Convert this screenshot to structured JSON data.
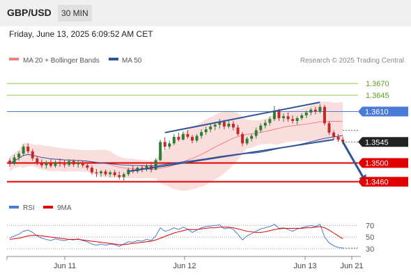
{
  "header": {
    "symbol": "GBP/USD",
    "timeframe": "30 MIN"
  },
  "datetime": "Friday, June 13, 2025 6:09:52 AM CET",
  "legend": [
    {
      "label": "MA 20 + Bollinger Bands",
      "color": "#f08080"
    },
    {
      "label": "MA 50",
      "color": "#2f5597"
    }
  ],
  "credit": "Research © 2025 Trading Central",
  "colors": {
    "up": "#2e7d32",
    "down": "#c62828",
    "resistance": "#8bc34a",
    "pivot": "#4a7bd6",
    "support": "#e00000",
    "current": "#222222",
    "arrow": "#2f5597"
  },
  "chart_data": {
    "type": "candlestick",
    "ylim": [
      1.3425,
      1.37
    ],
    "x_ticks": [
      "Jun 11",
      "Jun 12",
      "Jun 13",
      "Jun 21"
    ],
    "levels": [
      {
        "value": 1.367,
        "label": "1.3670",
        "kind": "resistance"
      },
      {
        "value": 1.3645,
        "label": "1.3645",
        "kind": "resistance"
      },
      {
        "value": 1.361,
        "label": "1.3610",
        "kind": "pivot"
      },
      {
        "value": 1.3545,
        "label": "1.3545",
        "kind": "current"
      },
      {
        "value": 1.35,
        "label": "1.3500",
        "kind": "support"
      },
      {
        "value": 1.346,
        "label": "1.3460",
        "kind": "support"
      }
    ],
    "candles": [
      [
        1.3505,
        1.351,
        1.3492,
        1.3498
      ],
      [
        1.3498,
        1.3518,
        1.3495,
        1.3512
      ],
      [
        1.3512,
        1.3525,
        1.3505,
        1.352
      ],
      [
        1.352,
        1.354,
        1.3515,
        1.3535
      ],
      [
        1.3535,
        1.3542,
        1.352,
        1.3525
      ],
      [
        1.3525,
        1.353,
        1.3505,
        1.351
      ],
      [
        1.351,
        1.3515,
        1.3495,
        1.35
      ],
      [
        1.35,
        1.3508,
        1.349,
        1.3495
      ],
      [
        1.3495,
        1.3505,
        1.3488,
        1.35
      ],
      [
        1.35,
        1.3508,
        1.349,
        1.3494
      ],
      [
        1.3494,
        1.3506,
        1.349,
        1.3502
      ],
      [
        1.3502,
        1.351,
        1.3492,
        1.3498
      ],
      [
        1.3498,
        1.3506,
        1.349,
        1.3496
      ],
      [
        1.3496,
        1.3508,
        1.3492,
        1.3504
      ],
      [
        1.3504,
        1.3508,
        1.3492,
        1.3497
      ],
      [
        1.3497,
        1.3506,
        1.349,
        1.35
      ],
      [
        1.35,
        1.3505,
        1.349,
        1.3495
      ],
      [
        1.3495,
        1.3502,
        1.3485,
        1.349
      ],
      [
        1.349,
        1.3495,
        1.3475,
        1.348
      ],
      [
        1.348,
        1.3487,
        1.347,
        1.3478
      ],
      [
        1.3478,
        1.3485,
        1.347,
        1.3482
      ],
      [
        1.3482,
        1.3486,
        1.3472,
        1.3476
      ],
      [
        1.3476,
        1.3484,
        1.347,
        1.348
      ],
      [
        1.348,
        1.3485,
        1.347,
        1.3474
      ],
      [
        1.3474,
        1.3482,
        1.3465,
        1.347
      ],
      [
        1.347,
        1.348,
        1.3462,
        1.3476
      ],
      [
        1.3476,
        1.349,
        1.3472,
        1.3486
      ],
      [
        1.3486,
        1.3495,
        1.3478,
        1.3482
      ],
      [
        1.3482,
        1.3492,
        1.3478,
        1.349
      ],
      [
        1.349,
        1.3496,
        1.348,
        1.3486
      ],
      [
        1.3486,
        1.3498,
        1.3482,
        1.3494
      ],
      [
        1.3494,
        1.3502,
        1.348,
        1.3486
      ],
      [
        1.3486,
        1.351,
        1.3484,
        1.3506
      ],
      [
        1.3506,
        1.355,
        1.3504,
        1.3545
      ],
      [
        1.3545,
        1.3555,
        1.3528,
        1.3535
      ],
      [
        1.3535,
        1.3548,
        1.353,
        1.3542
      ],
      [
        1.3542,
        1.3562,
        1.3538,
        1.3556
      ],
      [
        1.3556,
        1.3565,
        1.3546,
        1.355
      ],
      [
        1.355,
        1.3568,
        1.3548,
        1.3562
      ],
      [
        1.3562,
        1.357,
        1.3552,
        1.3556
      ],
      [
        1.3556,
        1.356,
        1.3542,
        1.3548
      ],
      [
        1.3548,
        1.3562,
        1.3544,
        1.3558
      ],
      [
        1.3558,
        1.3572,
        1.3552,
        1.3566
      ],
      [
        1.3566,
        1.3578,
        1.356,
        1.3572
      ],
      [
        1.3572,
        1.3585,
        1.3566,
        1.3578
      ],
      [
        1.3578,
        1.3588,
        1.357,
        1.3582
      ],
      [
        1.3582,
        1.3594,
        1.3574,
        1.3588
      ],
      [
        1.3588,
        1.3592,
        1.3572,
        1.3578
      ],
      [
        1.3578,
        1.359,
        1.3574,
        1.3584
      ],
      [
        1.3584,
        1.359,
        1.357,
        1.3576
      ],
      [
        1.3576,
        1.3582,
        1.3558,
        1.3562
      ],
      [
        1.3562,
        1.3566,
        1.3536,
        1.3542
      ],
      [
        1.3542,
        1.3556,
        1.3538,
        1.3552
      ],
      [
        1.3552,
        1.3562,
        1.3546,
        1.3558
      ],
      [
        1.3558,
        1.3576,
        1.3552,
        1.357
      ],
      [
        1.357,
        1.3585,
        1.3565,
        1.358
      ],
      [
        1.358,
        1.3592,
        1.3574,
        1.3586
      ],
      [
        1.3586,
        1.36,
        1.358,
        1.3594
      ],
      [
        1.3594,
        1.3622,
        1.359,
        1.3612
      ],
      [
        1.3612,
        1.3616,
        1.359,
        1.3596
      ],
      [
        1.3596,
        1.3606,
        1.3588,
        1.36
      ],
      [
        1.36,
        1.3608,
        1.3588,
        1.3594
      ],
      [
        1.3594,
        1.3602,
        1.3584,
        1.359
      ],
      [
        1.359,
        1.36,
        1.3582,
        1.3596
      ],
      [
        1.3596,
        1.3606,
        1.3592,
        1.3602
      ],
      [
        1.3602,
        1.3612,
        1.3596,
        1.3608
      ],
      [
        1.3608,
        1.3618,
        1.3602,
        1.3614
      ],
      [
        1.3614,
        1.362,
        1.3604,
        1.361
      ],
      [
        1.361,
        1.3626,
        1.3606,
        1.362
      ],
      [
        1.362,
        1.3624,
        1.358,
        1.3585
      ],
      [
        1.3585,
        1.359,
        1.356,
        1.3565
      ],
      [
        1.3565,
        1.357,
        1.355,
        1.3556
      ],
      [
        1.3556,
        1.3562,
        1.3545,
        1.355
      ],
      [
        1.355,
        1.3556,
        1.354,
        1.3545
      ]
    ],
    "channel": [
      {
        "name": "upper",
        "start": [
          34,
          1.3565
        ],
        "end": [
          68,
          1.363
        ]
      },
      {
        "name": "lower",
        "start": [
          26,
          1.3482
        ],
        "end": [
          71,
          1.355
        ]
      }
    ],
    "projection": {
      "from": [
        73,
        1.3545
      ],
      "to": [
        78,
        1.346
      ]
    },
    "rsi": {
      "legend": [
        {
          "label": "RSI",
          "color": "#4a7bd6"
        },
        {
          "label": "9MA",
          "color": "#e00000"
        }
      ],
      "ylim": [
        25,
        80
      ],
      "y_ticks": [
        70,
        50,
        30
      ],
      "rsi": [
        48,
        52,
        55,
        60,
        62,
        58,
        52,
        48,
        46,
        44,
        47,
        45,
        44,
        46,
        45,
        47,
        44,
        42,
        38,
        36,
        38,
        36,
        38,
        37,
        34,
        38,
        42,
        41,
        44,
        43,
        46,
        44,
        52,
        66,
        60,
        62,
        66,
        63,
        67,
        64,
        58,
        62,
        66,
        68,
        69,
        70,
        71,
        64,
        66,
        63,
        55,
        45,
        52,
        56,
        60,
        64,
        66,
        68,
        72,
        65,
        66,
        63,
        60,
        64,
        66,
        68,
        70,
        68,
        72,
        50,
        40,
        35,
        32,
        31
      ],
      "ma9": [
        46,
        47,
        48,
        50,
        52,
        53,
        53,
        52,
        51,
        50,
        49,
        48,
        47,
        46,
        46,
        46,
        45,
        44,
        43,
        42,
        41,
        40,
        39,
        38,
        37,
        37,
        38,
        39,
        40,
        41,
        42,
        43,
        45,
        48,
        51,
        54,
        57,
        59,
        61,
        63,
        63,
        63,
        64,
        65,
        66,
        66,
        67,
        67,
        67,
        66,
        64,
        62,
        60,
        59,
        58,
        58,
        59,
        61,
        63,
        64,
        65,
        65,
        65,
        65,
        65,
        66,
        66,
        67,
        68,
        66,
        62,
        57,
        52,
        47
      ]
    }
  }
}
